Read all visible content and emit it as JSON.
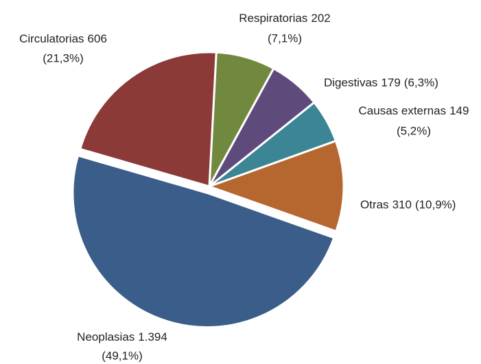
{
  "chart_data": {
    "type": "pie",
    "categories": [
      "Respiratorias",
      "Digestivas",
      "Causas externas",
      "Otras",
      "Neoplasias",
      "Circulatorias"
    ],
    "values": [
      202,
      179,
      149,
      310,
      1394,
      606
    ],
    "value_labels": [
      "202",
      "179",
      "149",
      "310",
      "1.394",
      "606"
    ],
    "percentages": [
      7.1,
      6.3,
      5.2,
      10.9,
      49.1,
      21.3
    ],
    "percentage_labels": [
      "(7,1%)",
      "(6,3%)",
      "(5,2%)",
      "(10,9%)",
      "(49,1%)",
      "(21,3%)"
    ],
    "colors": [
      "#71893f",
      "#5f4b7b",
      "#3b8595",
      "#b5672f",
      "#3a5d8a",
      "#8b3a38"
    ]
  }
}
